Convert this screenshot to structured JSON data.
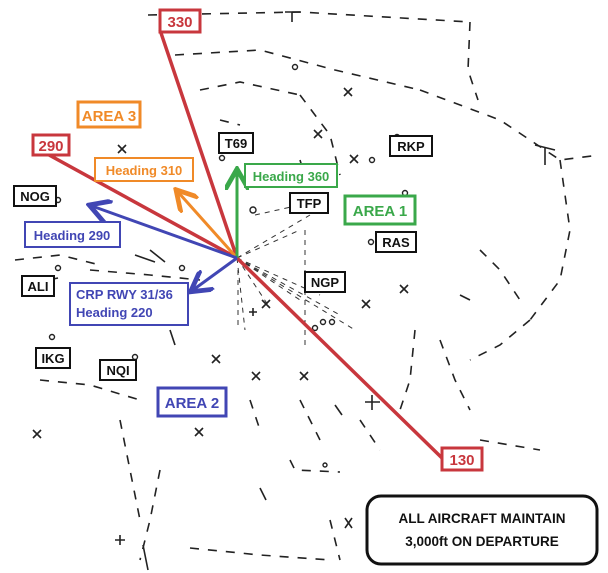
{
  "radials": [
    {
      "label": "330",
      "color": "#c8373d"
    },
    {
      "label": "290",
      "color": "#c8373d"
    },
    {
      "label": "130",
      "color": "#c8373d"
    }
  ],
  "areas": [
    {
      "label": "AREA 3",
      "color": "#f08a28"
    },
    {
      "label": "AREA 1",
      "color": "#3aa84a"
    },
    {
      "label": "AREA 2",
      "color": "#4146b4"
    }
  ],
  "headings": [
    {
      "label": "Heading 310",
      "color": "#f08a28"
    },
    {
      "label": "Heading 360",
      "color": "#3aa84a"
    },
    {
      "label": "Heading 290",
      "color": "#4146b4"
    },
    {
      "line1": "CRP RWY 31/36",
      "line2": "Heading 220",
      "color": "#4146b4"
    }
  ],
  "waypoints": [
    "T69",
    "RKP",
    "TFP",
    "RAS",
    "NGP",
    "NOG",
    "ALI",
    "IKG",
    "NQI"
  ],
  "notice": {
    "line1": "ALL AIRCRAFT MAINTAIN",
    "line2": "3,000ft ON DEPARTURE"
  }
}
